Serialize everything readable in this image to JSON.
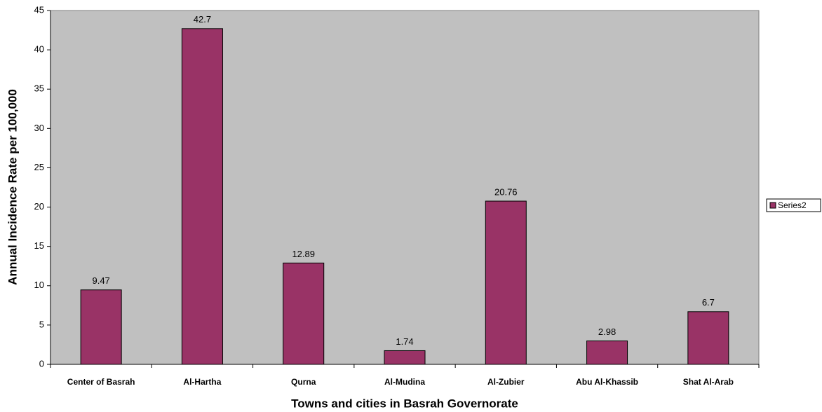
{
  "chart_data": {
    "type": "bar",
    "x_label": "Towns and cities in Basrah Governorate",
    "y_label": "Annual Incidence Rate per 100,000",
    "categories": [
      "Center of Basrah",
      "Al-Hartha",
      "Qurna",
      "Al-Mudina",
      "Al-Zubier",
      "Abu Al-Khassib",
      "Shat Al-Arab"
    ],
    "series": [
      {
        "name": "Series2",
        "color": "#993366",
        "values": [
          9.47,
          42.7,
          12.89,
          1.74,
          20.76,
          2.98,
          6.7
        ]
      }
    ],
    "ylim": [
      0,
      45
    ],
    "yticks": [
      0,
      5,
      10,
      15,
      20,
      25,
      30,
      35,
      40,
      45
    ],
    "plot_background": "#c0c0c0",
    "legend": "right"
  }
}
